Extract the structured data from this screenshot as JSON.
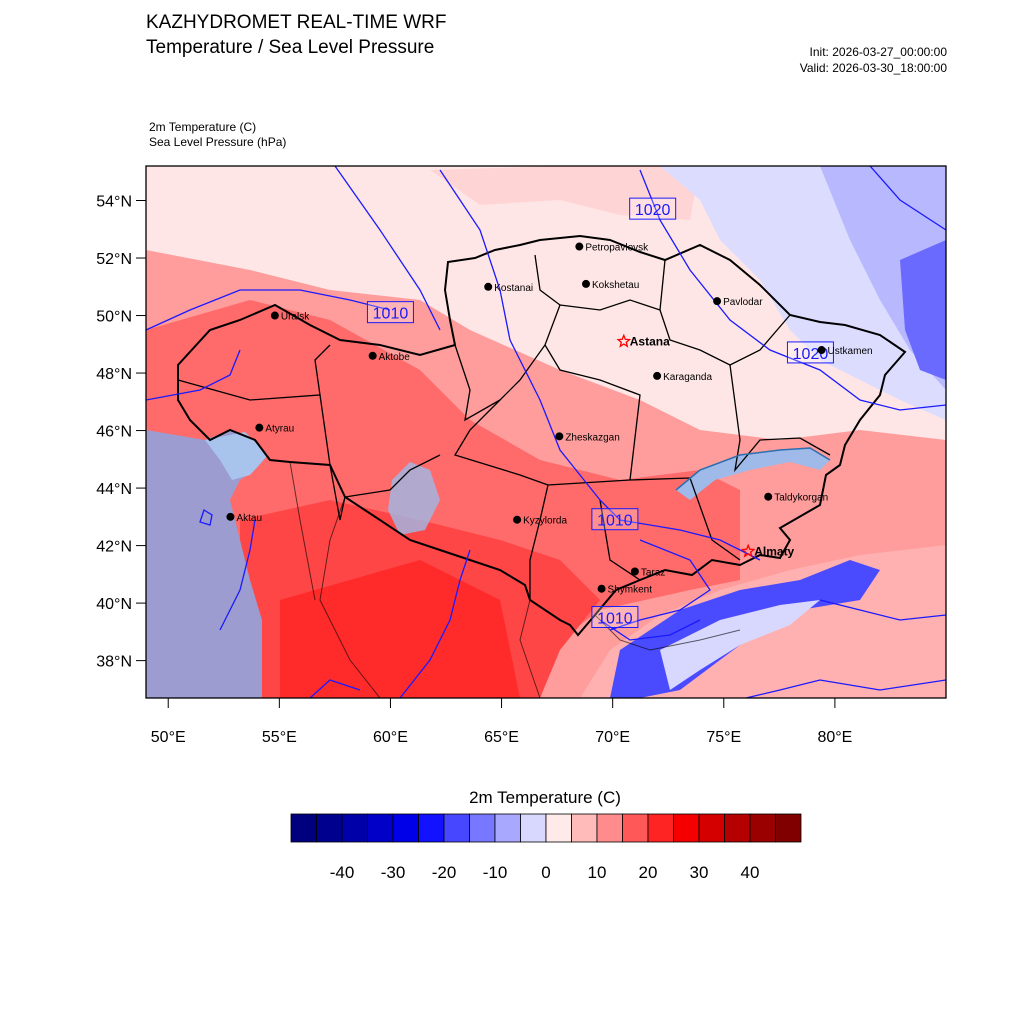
{
  "header": {
    "title": "KAZHYDROMET REAL-TIME WRF",
    "subtitle": "Temperature / Sea Level Pressure",
    "init": "Init: 2026-03-27_00:00:00",
    "valid": "Valid: 2026-03-30_18:00:00",
    "field1": "2m Temperature   (C)",
    "field2": "Sea Level Pressure   (hPa)"
  },
  "map": {
    "lon_range": [
      49,
      85
    ],
    "lat_range": [
      36.7,
      55.2
    ],
    "lat_ticks": [
      {
        "value": 38,
        "label": "38°N"
      },
      {
        "value": 40,
        "label": "40°N"
      },
      {
        "value": 42,
        "label": "42°N"
      },
      {
        "value": 44,
        "label": "44°N"
      },
      {
        "value": 46,
        "label": "46°N"
      },
      {
        "value": 48,
        "label": "48°N"
      },
      {
        "value": 50,
        "label": "50°N"
      },
      {
        "value": 52,
        "label": "52°N"
      },
      {
        "value": 54,
        "label": "54°N"
      }
    ],
    "lon_ticks": [
      {
        "value": 50,
        "label": "50°E"
      },
      {
        "value": 55,
        "label": "55°E"
      },
      {
        "value": 60,
        "label": "60°E"
      },
      {
        "value": 65,
        "label": "65°E"
      },
      {
        "value": 70,
        "label": "70°E"
      },
      {
        "value": 75,
        "label": "75°E"
      },
      {
        "value": 80,
        "label": "80°E"
      }
    ],
    "cities": [
      {
        "name": "Petropavlovsk",
        "lon": 68.5,
        "lat": 52.4,
        "capital": false
      },
      {
        "name": "Kostanai",
        "lon": 64.4,
        "lat": 51.0,
        "capital": false
      },
      {
        "name": "Kokshetau",
        "lon": 68.8,
        "lat": 51.1,
        "capital": false
      },
      {
        "name": "Pavlodar",
        "lon": 74.7,
        "lat": 50.5,
        "capital": false
      },
      {
        "name": "Uralsk",
        "lon": 54.8,
        "lat": 50.0,
        "capital": false
      },
      {
        "name": "Aktobe",
        "lon": 59.2,
        "lat": 48.6,
        "capital": false
      },
      {
        "name": "Astana",
        "lon": 70.5,
        "lat": 49.1,
        "capital": true
      },
      {
        "name": "Ustkamen",
        "lon": 79.4,
        "lat": 48.8,
        "capital": false
      },
      {
        "name": "Karaganda",
        "lon": 72.0,
        "lat": 47.9,
        "capital": false
      },
      {
        "name": "Atyrau",
        "lon": 54.1,
        "lat": 46.1,
        "capital": false
      },
      {
        "name": "Zheskazgan",
        "lon": 67.6,
        "lat": 45.8,
        "capital": false
      },
      {
        "name": "Taldykorgan",
        "lon": 77.0,
        "lat": 43.7,
        "capital": false
      },
      {
        "name": "Aktau",
        "lon": 52.8,
        "lat": 43.0,
        "capital": false
      },
      {
        "name": "Kyzylorda",
        "lon": 65.7,
        "lat": 42.9,
        "capital": false
      },
      {
        "name": "Almaty",
        "lon": 76.1,
        "lat": 41.8,
        "capital": true
      },
      {
        "name": "Taraz",
        "lon": 71.0,
        "lat": 41.1,
        "capital": false
      },
      {
        "name": "Shymkent",
        "lon": 69.5,
        "lat": 40.5,
        "capital": false
      }
    ],
    "isobar_labels": [
      {
        "text": "1020",
        "lon": 71.8,
        "lat": 53.7
      },
      {
        "text": "1010",
        "lon": 60.0,
        "lat": 50.1
      },
      {
        "text": "1020",
        "lon": 78.9,
        "lat": 48.7
      },
      {
        "text": "1010",
        "lon": 70.1,
        "lat": 42.9
      },
      {
        "text": "1010",
        "lon": 70.1,
        "lat": 39.5
      }
    ]
  },
  "colorbar": {
    "title": "2m Temperature  (C)",
    "colors": [
      "#00007f",
      "#00008f",
      "#0000a8",
      "#0000c8",
      "#0000e8",
      "#1212ff",
      "#4747ff",
      "#7777ff",
      "#a8a8ff",
      "#d8d8ff",
      "#ffeaea",
      "#ffbaba",
      "#ff8c8c",
      "#ff5858",
      "#ff2424",
      "#f40000",
      "#d40000",
      "#b40000",
      "#9a0000",
      "#800000"
    ],
    "ticks": [
      "-40",
      "-30",
      "-20",
      "-10",
      "0",
      "10",
      "20",
      "30",
      "40"
    ]
  },
  "colors": {
    "hot": "#ff3030",
    "warm": "#ff6a6a",
    "mild": "#ff9c9c",
    "cool": "#ffd6d6",
    "neutral": "#ffe9e9",
    "cold": "#c8c8ff",
    "mountain": "#3535ff",
    "water": "#9c9cd8",
    "isobar": "#1a1aff",
    "border": "#000000"
  }
}
